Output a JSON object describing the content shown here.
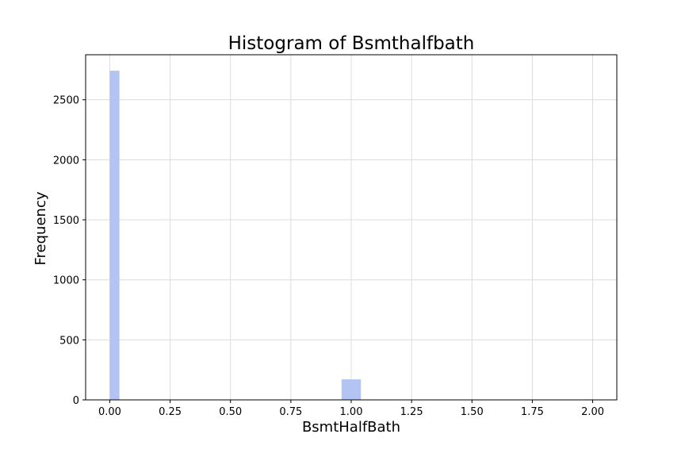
{
  "chart_data": {
    "type": "bar",
    "title": "Histogram of Bsmthalfbath",
    "xlabel": "BsmtHalfBath",
    "ylabel": "Frequency",
    "xlim": [
      -0.1,
      2.1
    ],
    "ylim": [
      0,
      2875
    ],
    "x_ticks": [
      "0.00",
      "0.25",
      "0.50",
      "0.75",
      "1.00",
      "1.25",
      "1.50",
      "1.75",
      "2.00"
    ],
    "y_ticks": [
      "0",
      "500",
      "1000",
      "1500",
      "2000",
      "2500"
    ],
    "grid": true,
    "bins": [
      {
        "x0": 0.0,
        "x1": 0.04,
        "count": 2742
      },
      {
        "x0": 0.96,
        "x1": 1.0,
        "count": 171
      },
      {
        "x0": 1.0,
        "x1": 1.04,
        "count": 171
      },
      {
        "x0": 1.96,
        "x1": 2.0,
        "count": 4
      }
    ],
    "bar_color": "#b3c3f2"
  }
}
